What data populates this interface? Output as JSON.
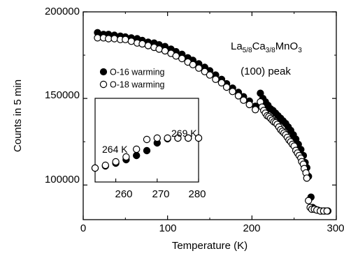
{
  "chart_data": {
    "type": "scatter",
    "xlabel": "Temperature (K)",
    "ylabel": "Counts in 5 min",
    "xlim": [
      0,
      300
    ],
    "ylim": [
      80000,
      200000
    ],
    "x_ticks": [
      "0",
      "100",
      "200",
      "300"
    ],
    "y_ticks": [
      "100000",
      "150000",
      "200000"
    ],
    "grid": false,
    "annotations": {
      "compound_main": "La",
      "compound_sub1": "5/8",
      "compound_mid": "Ca",
      "compound_sub2": "3/8",
      "compound_end": "MnO",
      "compound_sub3": "3",
      "peak": "(100) peak"
    },
    "legend_position": "middle-left",
    "series": [
      {
        "name": "O-16 warming",
        "marker": "filled-circle",
        "color": "#000000",
        "points": [
          [
            17,
            188000
          ],
          [
            24,
            187000
          ],
          [
            30,
            187000
          ],
          [
            37,
            186500
          ],
          [
            44,
            186000
          ],
          [
            50,
            185500
          ],
          [
            57,
            185000
          ],
          [
            64,
            184500
          ],
          [
            70,
            183500
          ],
          [
            77,
            182500
          ],
          [
            84,
            182000
          ],
          [
            90,
            181000
          ],
          [
            97,
            180000
          ],
          [
            104,
            178500
          ],
          [
            110,
            177000
          ],
          [
            117,
            175500
          ],
          [
            124,
            173500
          ],
          [
            130,
            172000
          ],
          [
            137,
            170000
          ],
          [
            144,
            168000
          ],
          [
            150,
            166000
          ],
          [
            157,
            163500
          ],
          [
            164,
            161000
          ],
          [
            170,
            158500
          ],
          [
            177,
            156000
          ],
          [
            184,
            153500
          ],
          [
            190,
            151000
          ],
          [
            197,
            148500
          ],
          [
            204,
            145500
          ],
          [
            210,
            153000
          ],
          [
            213,
            150000
          ],
          [
            216,
            148000
          ],
          [
            219,
            146000
          ],
          [
            222,
            144000
          ],
          [
            225,
            143000
          ],
          [
            228,
            141500
          ],
          [
            231,
            140000
          ],
          [
            234,
            138500
          ],
          [
            237,
            137000
          ],
          [
            240,
            135500
          ],
          [
            243,
            133500
          ],
          [
            246,
            131500
          ],
          [
            249,
            129000
          ],
          [
            252,
            126500
          ],
          [
            255,
            123500
          ],
          [
            258,
            120500
          ],
          [
            261,
            117000
          ],
          [
            263,
            113000
          ],
          [
            265,
            110000
          ],
          [
            267,
            105000
          ],
          [
            270,
            93000
          ],
          [
            272,
            87000
          ],
          [
            275,
            86000
          ],
          [
            278,
            85500
          ],
          [
            282,
            85000
          ],
          [
            286,
            85000
          ],
          [
            290,
            85000
          ]
        ]
      },
      {
        "name": "O-18 warming",
        "marker": "open-circle",
        "color": "#000000",
        "points": [
          [
            17,
            185000
          ],
          [
            24,
            185000
          ],
          [
            30,
            184500
          ],
          [
            37,
            184500
          ],
          [
            44,
            184000
          ],
          [
            50,
            184000
          ],
          [
            57,
            183000
          ],
          [
            64,
            182000
          ],
          [
            70,
            181500
          ],
          [
            77,
            180500
          ],
          [
            84,
            179500
          ],
          [
            90,
            178500
          ],
          [
            97,
            177500
          ],
          [
            104,
            176000
          ],
          [
            110,
            174500
          ],
          [
            117,
            173000
          ],
          [
            124,
            171000
          ],
          [
            130,
            169500
          ],
          [
            137,
            167500
          ],
          [
            144,
            165500
          ],
          [
            150,
            163500
          ],
          [
            157,
            161000
          ],
          [
            164,
            159000
          ],
          [
            170,
            156500
          ],
          [
            177,
            154000
          ],
          [
            184,
            151500
          ],
          [
            190,
            149000
          ],
          [
            197,
            146500
          ],
          [
            204,
            143500
          ],
          [
            210,
            148000
          ],
          [
            212,
            145000
          ],
          [
            214,
            143000
          ],
          [
            216,
            141500
          ],
          [
            218,
            140000
          ],
          [
            220,
            139500
          ],
          [
            222,
            138500
          ],
          [
            224,
            137500
          ],
          [
            226,
            136500
          ],
          [
            228,
            136000
          ],
          [
            230,
            135000
          ],
          [
            232,
            133500
          ],
          [
            234,
            132000
          ],
          [
            236,
            131000
          ],
          [
            238,
            130000
          ],
          [
            240,
            129000
          ],
          [
            242,
            127500
          ],
          [
            244,
            126000
          ],
          [
            246,
            125000
          ],
          [
            248,
            123500
          ],
          [
            250,
            122500
          ],
          [
            252,
            120000
          ],
          [
            254,
            118500
          ],
          [
            256,
            117000
          ],
          [
            258,
            115500
          ],
          [
            259,
            113500
          ],
          [
            261,
            112000
          ],
          [
            262,
            109500
          ],
          [
            264,
            107000
          ],
          [
            265,
            104000
          ],
          [
            267,
            91000
          ],
          [
            269,
            87000
          ],
          [
            271,
            86000
          ],
          [
            274,
            86000
          ],
          [
            277,
            85500
          ],
          [
            281,
            85000
          ],
          [
            285,
            85000
          ],
          [
            289,
            85000
          ]
        ]
      }
    ],
    "inset": {
      "xlim": [
        255,
        280
      ],
      "x_ticks": [
        "260",
        "270",
        "280"
      ],
      "labels": [
        "269 K",
        "264 K"
      ],
      "series": [
        {
          "name": "O-16 warming",
          "marker": "filled-circle",
          "points": [
            [
              255,
              147
            ],
            [
              257.5,
              144
            ],
            [
              260,
              140
            ],
            [
              262.5,
              135
            ],
            [
              265,
              129
            ],
            [
              267.5,
              122
            ],
            [
              270,
              111
            ],
            [
              272.5,
              105
            ],
            [
              275,
              104
            ],
            [
              277.5,
              104
            ],
            [
              280,
              104
            ]
          ]
        },
        {
          "name": "O-18 warming",
          "marker": "open-circle",
          "points": [
            [
              255,
              147
            ],
            [
              257.5,
              143
            ],
            [
              260,
              138
            ],
            [
              262.5,
              131
            ],
            [
              265,
              120
            ],
            [
              267.5,
              106
            ],
            [
              270,
              104
            ],
            [
              272.5,
              104
            ],
            [
              275,
              104
            ],
            [
              277.5,
              104
            ],
            [
              280,
              104
            ]
          ]
        }
      ]
    }
  }
}
